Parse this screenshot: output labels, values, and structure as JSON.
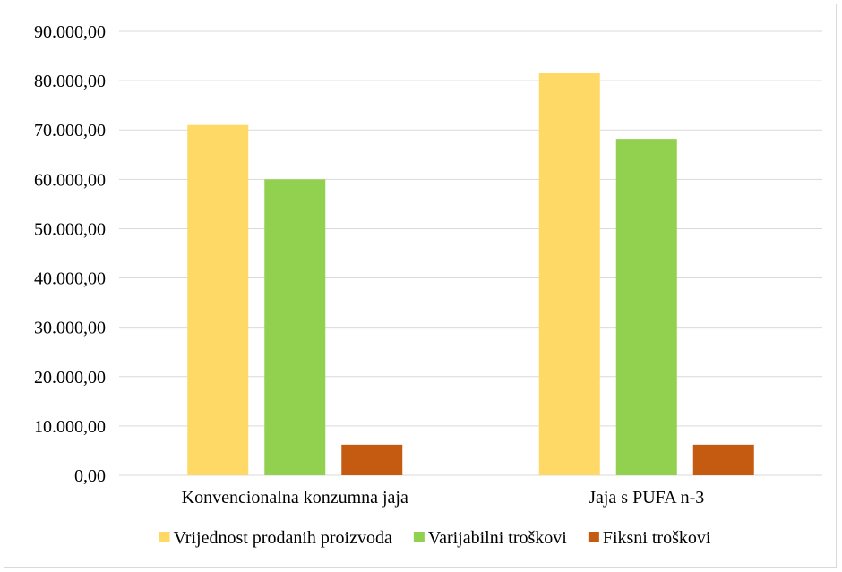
{
  "chart_data": {
    "type": "bar",
    "categories": [
      "Konvencionalna konzumna jaja",
      "Jaja s PUFA n-3"
    ],
    "series": [
      {
        "name": "Vrijednost prodanih proizvoda",
        "values": [
          71000,
          81600
        ],
        "color": "#FFD966"
      },
      {
        "name": "Varijabilni troškovi",
        "values": [
          60000,
          68200
        ],
        "color": "#92D050"
      },
      {
        "name": "Fiksni troškovi",
        "values": [
          6200,
          6200
        ],
        "color": "#C55A11"
      }
    ],
    "yticks": [
      "0,00",
      "10.000,00",
      "20.000,00",
      "30.000,00",
      "40.000,00",
      "50.000,00",
      "60.000,00",
      "70.000,00",
      "80.000,00",
      "90.000,00"
    ],
    "ylim": [
      0,
      90000
    ],
    "grid": true,
    "legend_position": "bottom",
    "gridline_color": "#d9d9d9"
  }
}
